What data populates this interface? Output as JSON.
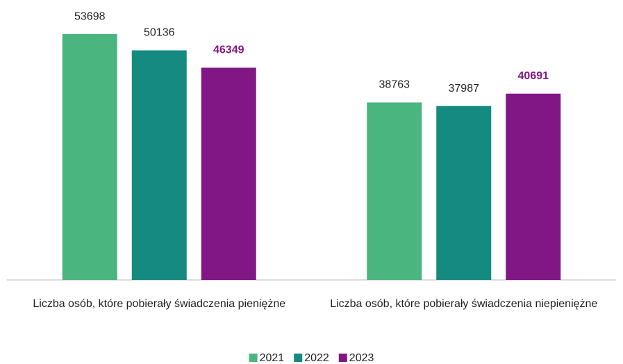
{
  "chart_data": {
    "type": "bar",
    "categories": [
      "Liczba osób, które pobierały świadczenia pieniężne",
      "Liczba osób, które pobierały świadczenia niepieniężne"
    ],
    "series": [
      {
        "name": "2021",
        "color": "#4ab57e",
        "values": [
          53698,
          38763
        ]
      },
      {
        "name": "2022",
        "color": "#148a80",
        "values": [
          50136,
          37987
        ]
      },
      {
        "name": "2023",
        "color": "#801785",
        "values": [
          46349,
          40691
        ]
      }
    ],
    "ylim": [
      0,
      60000
    ],
    "legend": "bottom"
  }
}
